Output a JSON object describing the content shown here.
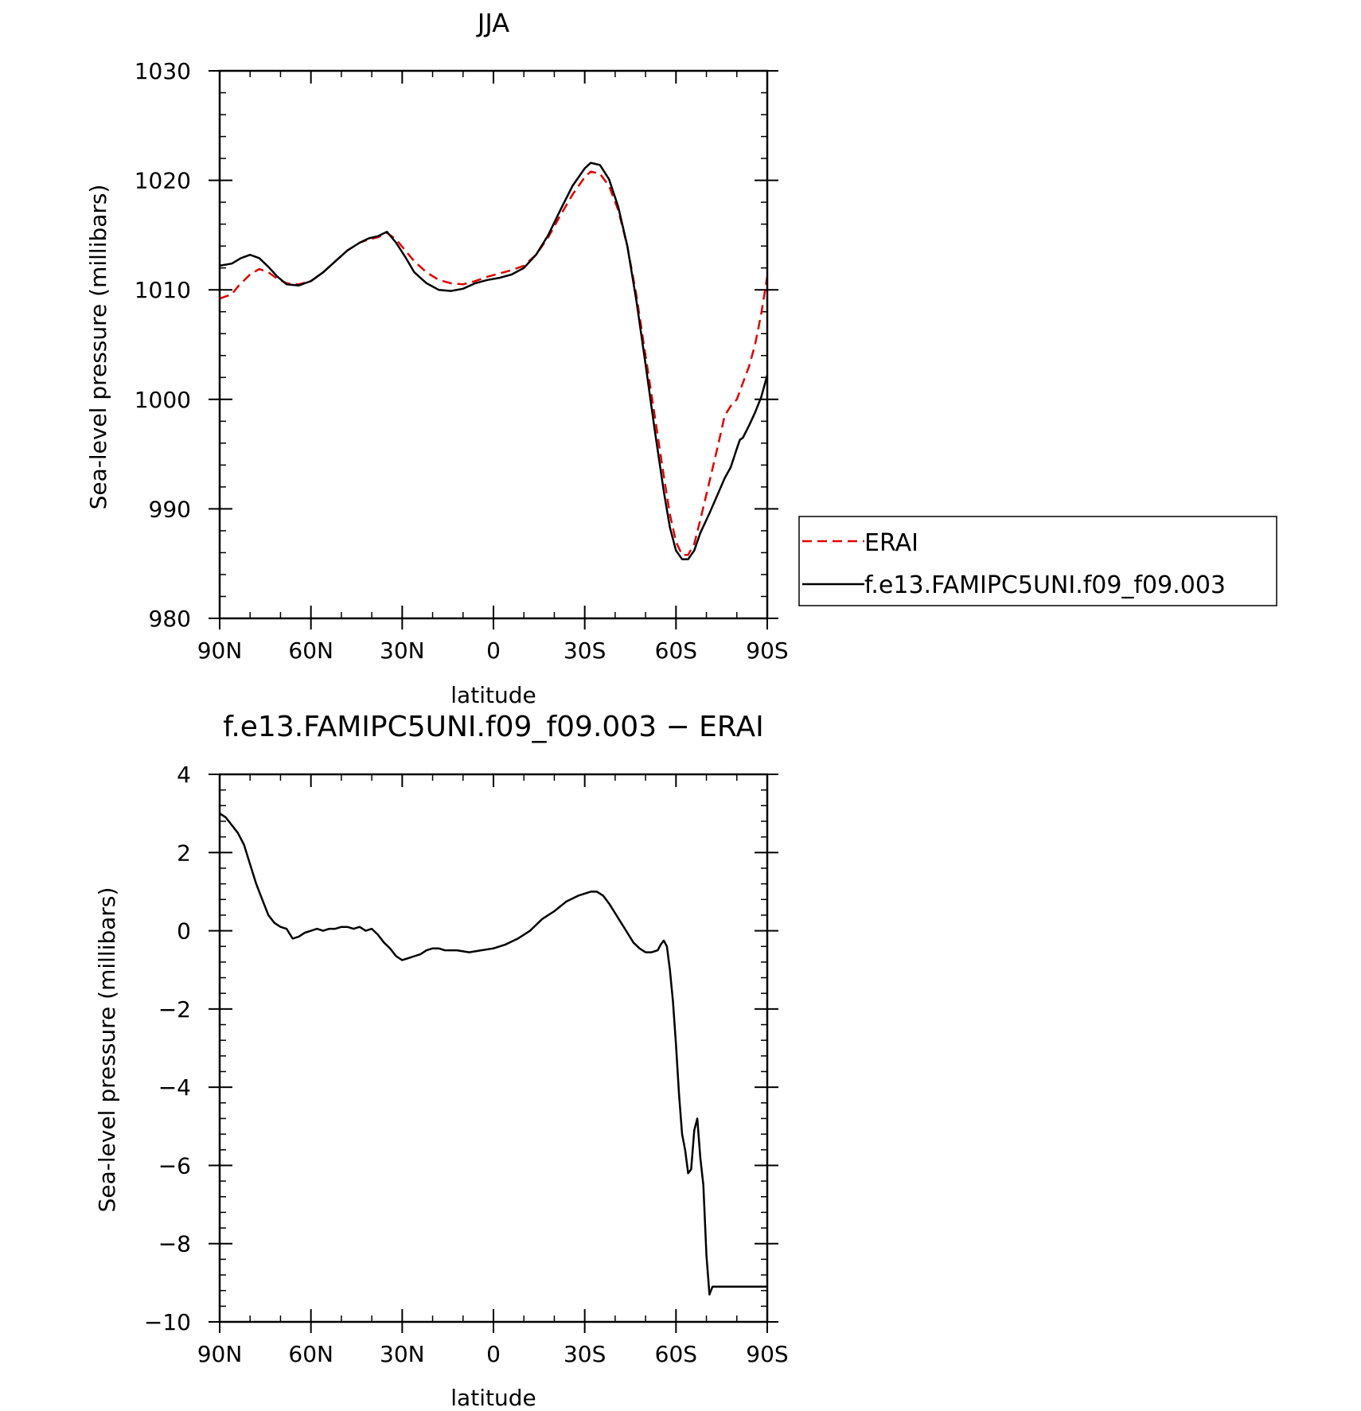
{
  "chart_data": [
    {
      "type": "line",
      "title": "JJA",
      "xlabel": "latitude",
      "ylabel": "Sea-level pressure (millibars)",
      "xlim": [
        90,
        -90
      ],
      "ylim": [
        980,
        1030
      ],
      "x_ticks": [
        90,
        60,
        30,
        0,
        -30,
        -60,
        -90
      ],
      "x_tick_labels": [
        "90N",
        "60N",
        "30N",
        "0",
        "30S",
        "60S",
        "90S"
      ],
      "y_ticks": [
        980,
        990,
        1000,
        1010,
        1020,
        1030
      ],
      "y_tick_labels": [
        "980",
        "990",
        "1000",
        "1010",
        "1020",
        "1030"
      ],
      "legend": {
        "placement": "right",
        "entries": [
          "ERAI",
          "f.e13.FAMIPC5UNI.f09_f09.003"
        ]
      },
      "series": [
        {
          "name": "ERAI",
          "color": "#e00000",
          "dashed": true,
          "points": [
            [
              90,
              1009.2
            ],
            [
              86,
              1009.6
            ],
            [
              84,
              1010.3
            ],
            [
              80,
              1011.4
            ],
            [
              77,
              1011.9
            ],
            [
              74,
              1011.6
            ],
            [
              71,
              1011.0
            ],
            [
              68,
              1010.6
            ],
            [
              64,
              1010.5
            ],
            [
              60,
              1010.8
            ],
            [
              56,
              1011.6
            ],
            [
              52,
              1012.6
            ],
            [
              48,
              1013.6
            ],
            [
              44,
              1014.3
            ],
            [
              41,
              1014.6
            ],
            [
              38,
              1014.8
            ],
            [
              35,
              1015.2
            ],
            [
              32,
              1014.6
            ],
            [
              29,
              1013.6
            ],
            [
              26,
              1012.6
            ],
            [
              22,
              1011.6
            ],
            [
              18,
              1010.9
            ],
            [
              14,
              1010.6
            ],
            [
              10,
              1010.5
            ],
            [
              6,
              1010.8
            ],
            [
              2,
              1011.2
            ],
            [
              -2,
              1011.5
            ],
            [
              -6,
              1011.8
            ],
            [
              -10,
              1012.2
            ],
            [
              -14,
              1013.2
            ],
            [
              -18,
              1014.8
            ],
            [
              -22,
              1016.8
            ],
            [
              -26,
              1018.7
            ],
            [
              -30,
              1020.3
            ],
            [
              -32,
              1020.8
            ],
            [
              -35,
              1020.6
            ],
            [
              -38,
              1019.5
            ],
            [
              -41,
              1017.3
            ],
            [
              -44,
              1014.0
            ],
            [
              -47,
              1009.5
            ],
            [
              -50,
              1004.0
            ],
            [
              -53,
              998.5
            ],
            [
              -56,
              993.0
            ],
            [
              -58,
              989.5
            ],
            [
              -60,
              987.0
            ],
            [
              -62,
              985.8
            ],
            [
              -64,
              985.8
            ],
            [
              -66,
              986.8
            ],
            [
              -68,
              989.0
            ],
            [
              -71,
              992.5
            ],
            [
              -74,
              996.0
            ],
            [
              -76,
              998.5
            ],
            [
              -78,
              999.4
            ],
            [
              -80,
              1000.0
            ],
            [
              -82,
              1001.5
            ],
            [
              -84,
              1003.0
            ],
            [
              -86,
              1005.0
            ],
            [
              -88,
              1007.8
            ],
            [
              -90,
              1011.2
            ]
          ]
        },
        {
          "name": "f.e13.FAMIPC5UNI.f09_f09.003",
          "color": "#000000",
          "dashed": false,
          "points": [
            [
              90,
              1012.2
            ],
            [
              86,
              1012.4
            ],
            [
              83,
              1012.9
            ],
            [
              80,
              1013.2
            ],
            [
              77,
              1012.9
            ],
            [
              74,
              1012.1
            ],
            [
              71,
              1011.2
            ],
            [
              68,
              1010.5
            ],
            [
              64,
              1010.4
            ],
            [
              60,
              1010.8
            ],
            [
              56,
              1011.6
            ],
            [
              52,
              1012.6
            ],
            [
              48,
              1013.6
            ],
            [
              44,
              1014.3
            ],
            [
              41,
              1014.7
            ],
            [
              38,
              1014.9
            ],
            [
              35,
              1015.3
            ],
            [
              32,
              1014.3
            ],
            [
              29,
              1013.0
            ],
            [
              26,
              1011.6
            ],
            [
              22,
              1010.6
            ],
            [
              18,
              1010.0
            ],
            [
              14,
              1009.9
            ],
            [
              10,
              1010.1
            ],
            [
              6,
              1010.6
            ],
            [
              2,
              1010.9
            ],
            [
              -2,
              1011.1
            ],
            [
              -6,
              1011.4
            ],
            [
              -10,
              1012.0
            ],
            [
              -14,
              1013.2
            ],
            [
              -18,
              1015.0
            ],
            [
              -22,
              1017.3
            ],
            [
              -26,
              1019.5
            ],
            [
              -30,
              1021.1
            ],
            [
              -32,
              1021.6
            ],
            [
              -35,
              1021.4
            ],
            [
              -38,
              1020.1
            ],
            [
              -41,
              1017.6
            ],
            [
              -44,
              1014.0
            ],
            [
              -47,
              1009.0
            ],
            [
              -50,
              1003.2
            ],
            [
              -53,
              997.2
            ],
            [
              -56,
              991.6
            ],
            [
              -58,
              988.3
            ],
            [
              -60,
              986.2
            ],
            [
              -62,
              985.4
            ],
            [
              -64,
              985.4
            ],
            [
              -66,
              986.2
            ],
            [
              -68,
              987.8
            ],
            [
              -71,
              989.6
            ],
            [
              -74,
              991.5
            ],
            [
              -76,
              992.8
            ],
            [
              -78,
              993.8
            ],
            [
              -80,
              995.5
            ],
            [
              -81,
              996.3
            ],
            [
              -82,
              996.5
            ],
            [
              -84,
              997.6
            ],
            [
              -86,
              998.8
            ],
            [
              -88,
              1000.2
            ],
            [
              -90,
              1002.2
            ]
          ]
        }
      ]
    },
    {
      "type": "line",
      "title": "f.e13.FAMIPC5UNI.f09_f09.003 − ERAI",
      "xlabel": "latitude",
      "ylabel": "Sea-level pressure (millibars)",
      "xlim": [
        90,
        -90
      ],
      "ylim": [
        -10,
        4
      ],
      "x_ticks": [
        90,
        60,
        30,
        0,
        -30,
        -60,
        -90
      ],
      "x_tick_labels": [
        "90N",
        "60N",
        "30N",
        "0",
        "30S",
        "60S",
        "90S"
      ],
      "y_ticks": [
        -10,
        -8,
        -6,
        -4,
        -2,
        0,
        2,
        4
      ],
      "y_tick_labels": [
        "−10",
        "−8",
        "−6",
        "−4",
        "−2",
        "0",
        "2",
        "4"
      ],
      "series": [
        {
          "color": "#000000",
          "dashed": false,
          "points": [
            [
              90,
              3.0
            ],
            [
              88,
              2.9
            ],
            [
              86,
              2.7
            ],
            [
              84,
              2.5
            ],
            [
              82,
              2.2
            ],
            [
              80,
              1.7
            ],
            [
              78,
              1.2
            ],
            [
              76,
              0.8
            ],
            [
              74,
              0.4
            ],
            [
              72,
              0.2
            ],
            [
              70,
              0.1
            ],
            [
              68,
              0.05
            ],
            [
              66,
              -0.2
            ],
            [
              64,
              -0.15
            ],
            [
              62,
              -0.05
            ],
            [
              60,
              0.0
            ],
            [
              58,
              0.05
            ],
            [
              56,
              0.0
            ],
            [
              54,
              0.05
            ],
            [
              52,
              0.05
            ],
            [
              50,
              0.1
            ],
            [
              48,
              0.1
            ],
            [
              46,
              0.05
            ],
            [
              44,
              0.1
            ],
            [
              42,
              0.0
            ],
            [
              40,
              0.05
            ],
            [
              38,
              -0.1
            ],
            [
              36,
              -0.3
            ],
            [
              34,
              -0.45
            ],
            [
              32,
              -0.65
            ],
            [
              30,
              -0.75
            ],
            [
              28,
              -0.7
            ],
            [
              26,
              -0.65
            ],
            [
              24,
              -0.6
            ],
            [
              22,
              -0.5
            ],
            [
              20,
              -0.45
            ],
            [
              18,
              -0.45
            ],
            [
              16,
              -0.5
            ],
            [
              12,
              -0.5
            ],
            [
              8,
              -0.55
            ],
            [
              4,
              -0.5
            ],
            [
              0,
              -0.45
            ],
            [
              -4,
              -0.35
            ],
            [
              -8,
              -0.2
            ],
            [
              -12,
              0.0
            ],
            [
              -16,
              0.3
            ],
            [
              -20,
              0.5
            ],
            [
              -24,
              0.75
            ],
            [
              -28,
              0.9
            ],
            [
              -32,
              1.0
            ],
            [
              -34,
              1.0
            ],
            [
              -36,
              0.9
            ],
            [
              -38,
              0.7
            ],
            [
              -40,
              0.45
            ],
            [
              -42,
              0.2
            ],
            [
              -44,
              -0.05
            ],
            [
              -46,
              -0.3
            ],
            [
              -48,
              -0.45
            ],
            [
              -50,
              -0.55
            ],
            [
              -52,
              -0.55
            ],
            [
              -54,
              -0.5
            ],
            [
              -55,
              -0.35
            ],
            [
              -56,
              -0.25
            ],
            [
              -57,
              -0.4
            ],
            [
              -58,
              -1.0
            ],
            [
              -59,
              -1.8
            ],
            [
              -60,
              -2.9
            ],
            [
              -61,
              -4.2
            ],
            [
              -62,
              -5.2
            ],
            [
              -63,
              -5.6
            ],
            [
              -64,
              -6.2
            ],
            [
              -65,
              -6.1
            ],
            [
              -66,
              -5.1
            ],
            [
              -67,
              -4.8
            ],
            [
              -68,
              -5.8
            ],
            [
              -69,
              -6.5
            ],
            [
              -70,
              -8.3
            ],
            [
              -71,
              -9.3
            ],
            [
              -72,
              -9.1
            ],
            [
              -90,
              -9.1
            ]
          ]
        }
      ]
    }
  ]
}
